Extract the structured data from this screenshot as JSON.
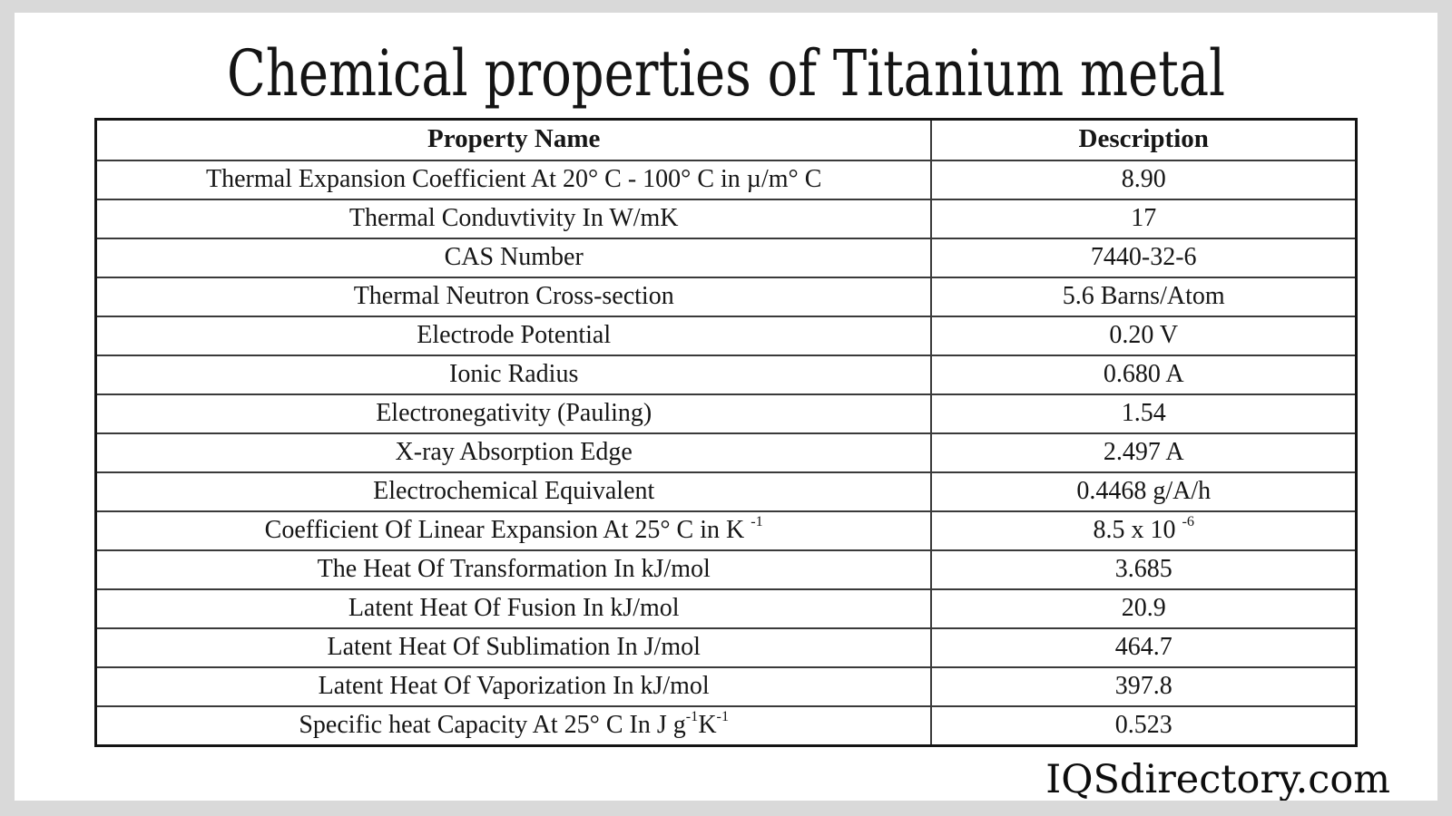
{
  "title": "Chemical properties of Titanium metal",
  "watermark": "IQSdirectory.com",
  "colors": {
    "page_background": "#d9d9d9",
    "content_background": "#ffffff",
    "table_border": "#141414",
    "inner_border": "#3a3a3a",
    "text": "#161616"
  },
  "chart_data": {
    "type": "table",
    "title": "Chemical properties of Titanium metal",
    "columns": [
      "Property Name",
      "Description"
    ],
    "rows": [
      {
        "property": "Thermal Expansion Coefficient At 20° C - 100° C in µ/m° C",
        "description": "8.90"
      },
      {
        "property": "Thermal Conduvtivity In W/mK",
        "description": "17"
      },
      {
        "property": "CAS Number",
        "description": "7440-32-6"
      },
      {
        "property": "Thermal Neutron Cross-section",
        "description": "5.6 Barns/Atom"
      },
      {
        "property": "Electrode Potential",
        "description": "0.20 V"
      },
      {
        "property": "Ionic Radius",
        "description": "0.680 A"
      },
      {
        "property": "Electronegativity (Pauling)",
        "description": "1.54"
      },
      {
        "property": "X-ray Absorption Edge",
        "description": "2.497 A"
      },
      {
        "property": "Electrochemical Equivalent",
        "description": "0.4468 g/A/h"
      },
      {
        "property": [
          {
            "text": "Coefficient Of Linear Expansion At 25° C in K "
          },
          {
            "text": "-1",
            "sup": true
          }
        ],
        "description": [
          {
            "text": "8.5 x 10 "
          },
          {
            "text": "-6",
            "sup": true
          }
        ]
      },
      {
        "property": "The Heat Of Transformation In kJ/mol",
        "description": "3.685"
      },
      {
        "property": "Latent Heat Of Fusion In kJ/mol",
        "description": "20.9"
      },
      {
        "property": "Latent Heat Of Sublimation In J/mol",
        "description": "464.7"
      },
      {
        "property": "Latent Heat Of Vaporization In kJ/mol",
        "description": "397.8"
      },
      {
        "property": [
          {
            "text": "Specific heat Capacity At 25° C In J g"
          },
          {
            "text": "-1",
            "sup": true
          },
          {
            "text": "K"
          },
          {
            "text": "-1",
            "sup": true
          }
        ],
        "description": "0.523"
      }
    ]
  }
}
